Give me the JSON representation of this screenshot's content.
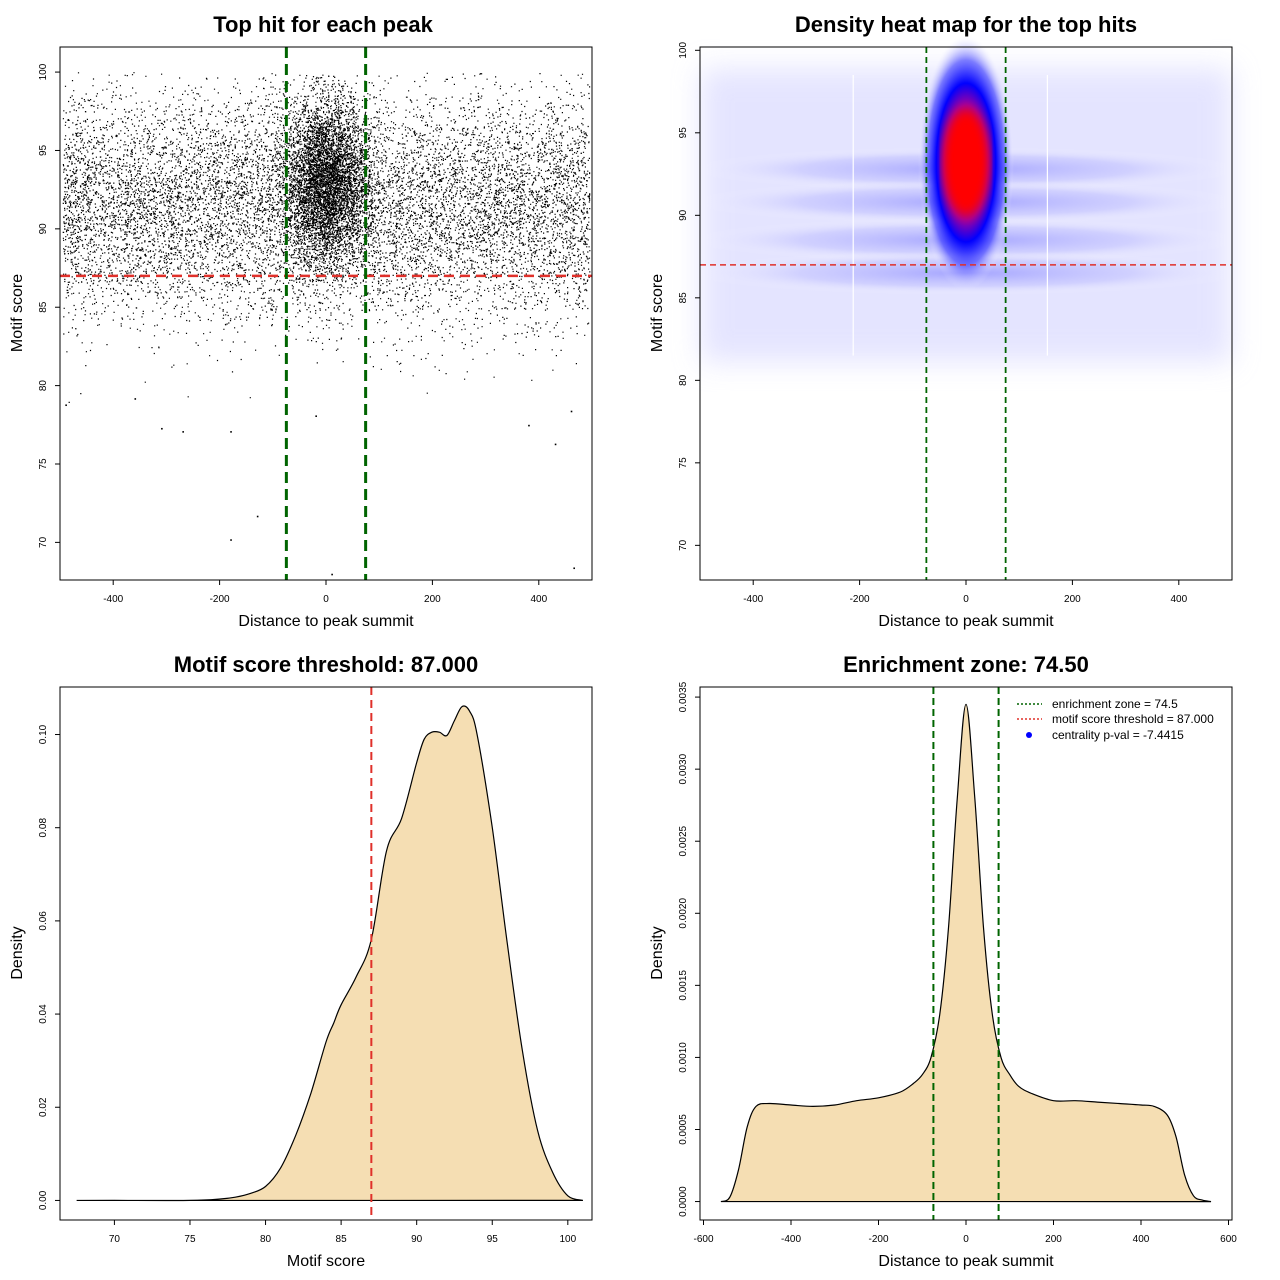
{
  "colors": {
    "threshold_line": "#e0302a",
    "zone_line": "#006400",
    "density_fill": "#f5deb3",
    "heat_low": "#ffffff",
    "heat_mid": "#0000ff",
    "heat_high": "#ff0000",
    "legend_point": "#0000ff"
  },
  "chart_data": [
    {
      "type": "scatter",
      "title": "Top hit for each peak",
      "xlabel": "Distance to peak summit",
      "ylabel": "Motif score",
      "xlim": [
        -500,
        500
      ],
      "ylim": [
        67.6,
        101.6
      ],
      "xticks": [
        "-400",
        "-200",
        "0",
        "200",
        "400"
      ],
      "yticks": [
        "70",
        "75",
        "80",
        "85",
        "90",
        "95",
        "100"
      ],
      "threshold": 87.0,
      "enrichment_zone": [
        -74.5,
        74.5
      ],
      "outliers": [
        [
          -130,
          71.7
        ],
        [
          -180,
          70.2
        ],
        [
          10,
          68.0
        ],
        [
          465,
          68.4
        ],
        [
          -180,
          77.1
        ],
        [
          -270,
          77.1
        ],
        [
          -310,
          77.3
        ],
        [
          -360,
          79.2
        ],
        [
          380,
          77.5
        ],
        [
          430,
          76.3
        ],
        [
          460,
          78.4
        ],
        [
          -490,
          78.8
        ],
        [
          -20,
          78.1
        ]
      ]
    },
    {
      "type": "heatmap",
      "title": "Density heat map for the top hits",
      "xlabel": "Distance to peak summit",
      "ylabel": "Motif score",
      "xlim": [
        -500,
        500
      ],
      "ylim": [
        67.9,
        100.2
      ],
      "xticks": [
        "-400",
        "-200",
        "0",
        "200",
        "400"
      ],
      "yticks": [
        "70",
        "75",
        "80",
        "85",
        "90",
        "95",
        "100"
      ],
      "threshold": 87.0,
      "enrichment_zone": [
        -74.5,
        74.5
      ],
      "peak": {
        "x": 0,
        "y": 93.2
      }
    },
    {
      "type": "area",
      "title": "Motif score threshold: 87.000",
      "xlabel": "Motif score",
      "ylabel": "Density",
      "xlim": [
        66.4,
        101.6
      ],
      "ylim": [
        -0.0042,
        0.1102
      ],
      "xticks": [
        "70",
        "75",
        "80",
        "85",
        "90",
        "95",
        "100"
      ],
      "yticks": [
        "0.00",
        "0.02",
        "0.04",
        "0.06",
        "0.08",
        "0.10"
      ],
      "threshold": 87.0,
      "x": [
        67.5,
        70,
        75,
        77,
        78,
        79,
        80,
        81,
        82,
        83,
        84,
        84.5,
        85,
        86,
        87,
        88,
        89,
        90,
        90.5,
        91,
        91.5,
        92,
        92.5,
        93,
        93.5,
        94,
        95,
        96,
        97,
        98,
        99,
        100,
        101
      ],
      "y": [
        0.0,
        0.0,
        0.0,
        0.0003,
        0.0007,
        0.0015,
        0.003,
        0.007,
        0.014,
        0.023,
        0.034,
        0.038,
        0.042,
        0.048,
        0.056,
        0.075,
        0.082,
        0.094,
        0.099,
        0.1005,
        0.1005,
        0.0998,
        0.103,
        0.106,
        0.105,
        0.1,
        0.08,
        0.055,
        0.032,
        0.015,
        0.006,
        0.001,
        0.0
      ]
    },
    {
      "type": "area",
      "title": "Enrichment zone: 74.50",
      "xlabel": "Distance to peak summit",
      "ylabel": "Density",
      "xlim": [
        -608,
        608
      ],
      "ylim": [
        -0.000128,
        0.00357
      ],
      "xticks": [
        "-600",
        "-400",
        "-200",
        "0",
        "200",
        "400",
        "600"
      ],
      "yticks": [
        "0.0000",
        "0.0005",
        "0.0010",
        "0.0015",
        "0.0020",
        "0.0025",
        "0.0030",
        "0.0035"
      ],
      "enrichment_zone": [
        -74.5,
        74.5
      ],
      "legend": {
        "position": "top-right",
        "items": [
          "enrichment zone = 74.5",
          "motif score threshold = 87.000",
          "centrality p-val = -7.4415"
        ]
      },
      "x": [
        -560,
        -540,
        -520,
        -500,
        -480,
        -450,
        -400,
        -350,
        -300,
        -250,
        -200,
        -150,
        -120,
        -100,
        -80,
        -60,
        -40,
        -20,
        0,
        20,
        40,
        60,
        80,
        100,
        120,
        150,
        200,
        250,
        300,
        350,
        400,
        430,
        460,
        480,
        500,
        520,
        540,
        560
      ],
      "y": [
        0.0,
        3e-05,
        0.00022,
        0.00052,
        0.00066,
        0.00068,
        0.00067,
        0.00066,
        0.00067,
        0.0007,
        0.00072,
        0.00076,
        0.00082,
        0.00088,
        0.001,
        0.0013,
        0.0019,
        0.0028,
        0.00345,
        0.0028,
        0.0019,
        0.0013,
        0.001,
        0.00088,
        0.0008,
        0.00075,
        0.0007,
        0.0007,
        0.00069,
        0.00068,
        0.00067,
        0.00066,
        0.0006,
        0.00045,
        0.00018,
        4e-05,
        1e-05,
        0.0
      ]
    }
  ]
}
